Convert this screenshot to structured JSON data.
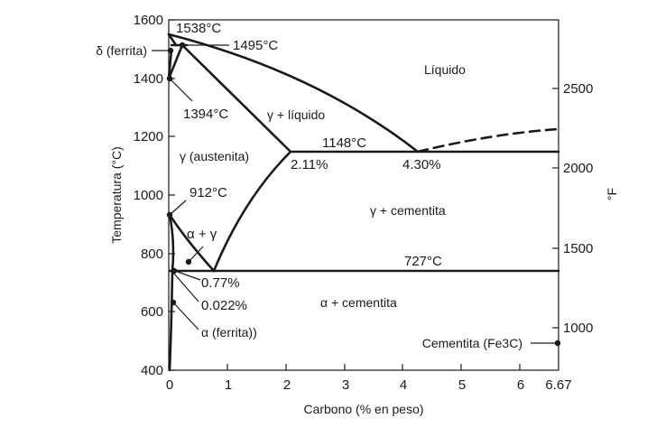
{
  "chart_data": {
    "type": "phase-diagram",
    "xlabel": "Carbono (% en peso)",
    "ylabel_left": "Temperatura (°C)",
    "ylabel_right": "°F",
    "xlim": [
      0,
      6.67
    ],
    "ylim": [
      400,
      1600
    ],
    "x_ticks": [
      "0",
      "1",
      "2",
      "3",
      "4",
      "5",
      "6",
      "6.67"
    ],
    "y_ticks": [
      "400",
      "600",
      "800",
      "1000",
      "1200",
      "1400",
      "1600"
    ],
    "y_ticks_right": [
      "1000",
      "1500",
      "2000",
      "2500"
    ],
    "regions": {
      "liquid": "Líquido",
      "gamma_liquid": "γ + líquido",
      "austenite": "γ (austenita)",
      "gamma_cementite": "γ + cementita",
      "alpha_gamma": "α + γ",
      "alpha_cementite": "α + cementita"
    },
    "points": {
      "t1538": "1538°C",
      "t1495": "1495°C",
      "t1394": "1394°C",
      "t1148": "1148°C",
      "c211": "2.11%",
      "c430": "4.30%",
      "t912": "912°C",
      "t727": "727°C",
      "c077": "0.77%",
      "c0022": "0.022%"
    },
    "callouts": {
      "delta_ferrite": "δ (ferrita)",
      "alpha_ferrite": "α (ferrita))",
      "cementite": "Cementita (Fe3C)"
    },
    "key_points": [
      {
        "carbon": 0,
        "temp_c": 1538
      },
      {
        "carbon": 0.09,
        "temp_c": 1495
      },
      {
        "carbon": 0,
        "temp_c": 1394
      },
      {
        "carbon": 2.11,
        "temp_c": 1148
      },
      {
        "carbon": 4.3,
        "temp_c": 1148
      },
      {
        "carbon": 0,
        "temp_c": 912
      },
      {
        "carbon": 0.77,
        "temp_c": 727
      },
      {
        "carbon": 0.022,
        "temp_c": 727
      },
      {
        "carbon": 6.67,
        "temp_c": 1148
      }
    ]
  }
}
